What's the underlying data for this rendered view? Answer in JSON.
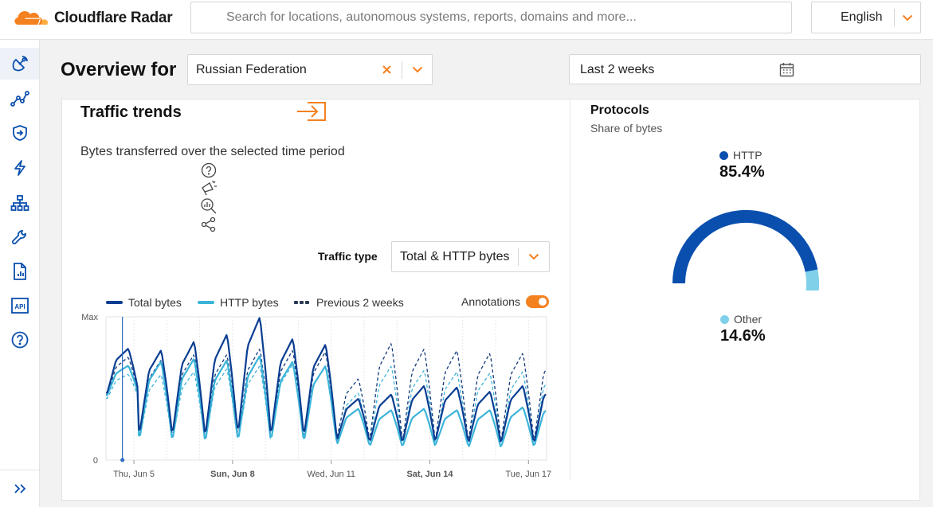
{
  "app": {
    "name": "Cloudflare Radar"
  },
  "search": {
    "placeholder": "Search for locations, autonomous systems, reports, domains and more..."
  },
  "language": {
    "selected": "English"
  },
  "sidebar": {
    "items": [
      {
        "icon": "radar-dish-icon"
      },
      {
        "icon": "traffic-trends-icon"
      },
      {
        "icon": "security-shield-icon"
      },
      {
        "icon": "lightning-icon"
      },
      {
        "icon": "network-tree-icon"
      },
      {
        "icon": "wrench-icon"
      },
      {
        "icon": "report-document-icon"
      },
      {
        "icon": "api-icon",
        "label": "API"
      },
      {
        "icon": "help-icon"
      }
    ],
    "expand_icon": "double-chevron-right-icon"
  },
  "overview": {
    "title": "Overview for",
    "location": "Russian Federation",
    "date_range": "Last 2 weeks"
  },
  "traffic_trends": {
    "title": "Traffic trends",
    "description": "Bytes transferred over the selected time period",
    "tools": [
      "help-icon",
      "announce-icon",
      "zoom-chart-icon",
      "share-icon"
    ],
    "traffic_type_label": "Traffic type",
    "traffic_type_value": "Total & HTTP bytes",
    "legend": {
      "total": "Total bytes",
      "http": "HTTP bytes",
      "previous": "Previous 2 weeks",
      "annotations": "Annotations"
    },
    "annotations_enabled": true
  },
  "chart_data": {
    "type": "line",
    "ylabel": "",
    "y_tick_labels": [
      "Max",
      "0"
    ],
    "ylim": [
      0,
      1
    ],
    "x_tick_labels": [
      "Thu, Jun 5",
      "Sun, Jun 8",
      "Wed, Jun 11",
      "Sat, Jun 14",
      "Tue, Jun 17"
    ],
    "x_tick_bold": [
      false,
      true,
      false,
      true,
      false
    ],
    "x_range_days": [
      4.15,
      17.55
    ],
    "annotation_marker_day": 4.65,
    "series_params": [
      {
        "name": "Total bytes",
        "color": "#0a3d91",
        "peaks": [
          0.78,
          0.77,
          0.83,
          0.88,
          1.0,
          0.85,
          0.81,
          0.43,
          0.46,
          0.52,
          0.51,
          0.48,
          0.52,
          0.55,
          0.56
        ],
        "troughs": [
          0.45,
          0.18,
          0.17,
          0.16,
          0.18,
          0.17,
          0.16,
          0.13,
          0.12,
          0.12,
          0.13,
          0.11,
          0.12,
          0.11,
          0.12
        ]
      },
      {
        "name": "HTTP bytes",
        "color": "#3bb4d9",
        "peaks": [
          0.66,
          0.69,
          0.71,
          0.7,
          0.73,
          0.69,
          0.66,
          0.36,
          0.35,
          0.36,
          0.35,
          0.35,
          0.37,
          0.41,
          0.44
        ],
        "troughs": [
          0.44,
          0.14,
          0.13,
          0.12,
          0.13,
          0.13,
          0.12,
          0.1,
          0.09,
          0.09,
          0.1,
          0.08,
          0.09,
          0.09,
          0.1
        ]
      },
      {
        "name": "Previous 2 weeks (total)",
        "color": "#123a7a",
        "dashed": true,
        "peaks": [
          0.72,
          0.7,
          0.74,
          0.74,
          0.78,
          0.77,
          0.76,
          0.57,
          0.82,
          0.78,
          0.77,
          0.75,
          0.75,
          0.76,
          0.82
        ],
        "troughs": [
          0.44,
          0.17,
          0.16,
          0.15,
          0.16,
          0.15,
          0.14,
          0.14,
          0.13,
          0.12,
          0.13,
          0.12,
          0.13,
          0.12,
          0.13
        ]
      },
      {
        "name": "Previous 2 weeks (HTTP)",
        "color": "#3bb4d9",
        "dashed": true,
        "peaks": [
          0.6,
          0.6,
          0.62,
          0.64,
          0.66,
          0.67,
          0.66,
          0.47,
          0.66,
          0.63,
          0.62,
          0.61,
          0.62,
          0.64,
          0.68
        ],
        "troughs": [
          0.42,
          0.14,
          0.13,
          0.12,
          0.13,
          0.12,
          0.12,
          0.11,
          0.1,
          0.1,
          0.1,
          0.1,
          0.1,
          0.1,
          0.11
        ]
      }
    ]
  },
  "protocols": {
    "title": "Protocols",
    "subtitle": "Share of bytes",
    "slices": [
      {
        "label": "HTTP",
        "value": 85.4,
        "display": "85.4%",
        "color": "#0a4fae"
      },
      {
        "label": "Other",
        "value": 14.6,
        "display": "14.6%",
        "color": "#7fd0e8"
      }
    ]
  },
  "colors": {
    "accent": "#f48120",
    "brand_blue": "#0a4fae"
  }
}
